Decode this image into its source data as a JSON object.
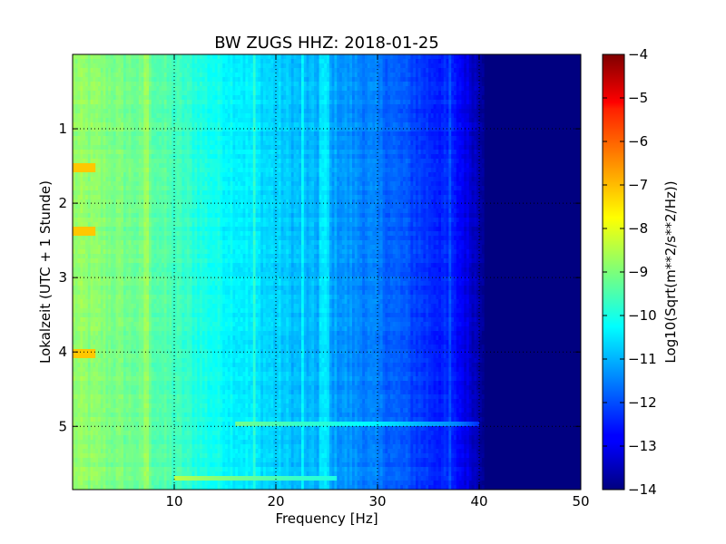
{
  "chart_data": {
    "type": "heatmap",
    "title": "BW ZUGS HHZ: 2018-01-25",
    "xlabel": "Frequency [Hz]",
    "ylabel": "Lokalzeit (UTC + 1 Stunde)",
    "xlim": [
      0,
      50
    ],
    "ylim": [
      5.85,
      0
    ],
    "x_ticks": [
      10,
      20,
      30,
      40,
      50
    ],
    "y_ticks": [
      1,
      2,
      3,
      4,
      5
    ],
    "grid": true,
    "colormap": "jet",
    "colorbar": {
      "label": "Log10(Sqrt(m**2/s**2/Hz))",
      "range": [
        -14,
        -4
      ],
      "ticks": [
        -4,
        -5,
        -6,
        -7,
        -8,
        -9,
        -10,
        -11,
        -12,
        -13,
        -14
      ]
    },
    "spectral_profile": {
      "frequency_hz": [
        0,
        2,
        5,
        8,
        10,
        13,
        16,
        19,
        22,
        25,
        28,
        30,
        33,
        35,
        37,
        38,
        39,
        40,
        41,
        45,
        50
      ],
      "log10_psd": [
        -8.8,
        -8.9,
        -9.1,
        -9.3,
        -9.6,
        -10.0,
        -10.3,
        -10.6,
        -10.9,
        -11.1,
        -11.4,
        -11.6,
        -12.0,
        -12.3,
        -12.5,
        -12.7,
        -13.1,
        -13.5,
        -13.9,
        -14.0,
        -14.0
      ]
    },
    "spectral_lines_hz": [
      7.3,
      17.9,
      22.6,
      24.5,
      25.0,
      37.1
    ],
    "annotations": [
      {
        "note": "bright spots",
        "frequency_hz": 1.0,
        "time_h": [
          1.5,
          2.4,
          4.0
        ],
        "log10_psd": -7.2
      },
      {
        "note": "horizontal band",
        "frequency_hz_range": [
          16,
          40
        ],
        "time_h": 4.97,
        "log10_psd": -9.5
      },
      {
        "note": "horizontal band",
        "frequency_hz_range": [
          10,
          26
        ],
        "time_h": 5.7,
        "log10_psd": -9.0
      }
    ]
  },
  "figure": {
    "title": "BW ZUGS HHZ: 2018-01-25",
    "xlabel": "Frequency [Hz]",
    "ylabel": "Lokalzeit (UTC + 1 Stunde)",
    "colorbar_label": "Log10(Sqrt(m**2/s**2/Hz))"
  }
}
